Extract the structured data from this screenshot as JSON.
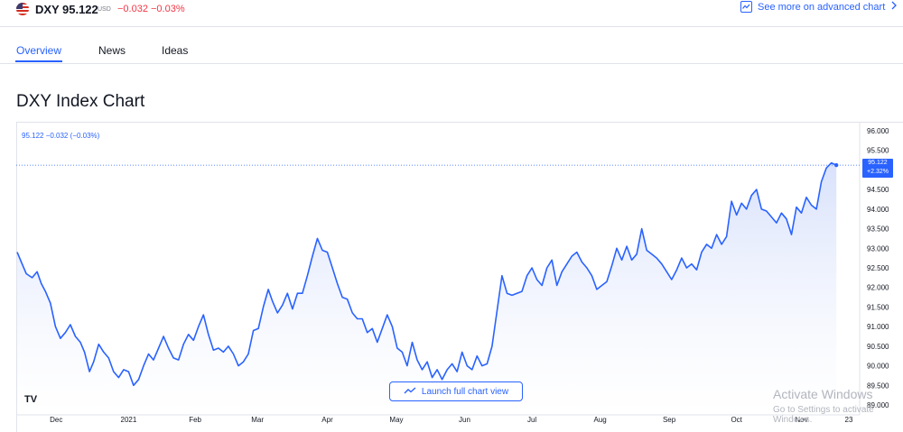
{
  "header": {
    "symbol": "DXY",
    "price": "95.122",
    "currency": "USD",
    "change": "−0.032",
    "change_pct": "−0.03%",
    "advanced_link": "See more on advanced chart"
  },
  "tabs": [
    {
      "label": "Overview",
      "active": true
    },
    {
      "label": "News",
      "active": false
    },
    {
      "label": "Ideas",
      "active": false
    }
  ],
  "title": "DXY Index Chart",
  "legend": "95.122  −0.032 (−0.03%)",
  "launch_button": "Launch full chart view",
  "logo_text": "TV",
  "watermark": {
    "line1": "Activate Windows",
    "line2": "Go to Settings to activate Windows."
  },
  "last_badge": {
    "price": "95.122",
    "change": "+2.32%"
  },
  "colors": {
    "accent": "#2962ff",
    "line": "#2962ff",
    "negative": "#f23645",
    "area_top": "#d6e0fb"
  },
  "chart_data": {
    "type": "area",
    "title": "DXY Index Chart",
    "xlabel": "",
    "ylabel": "",
    "ylim": [
      89.0,
      96.0
    ],
    "grid": false,
    "y_ticks": [
      "96.000",
      "95.500",
      "95.000",
      "94.500",
      "94.000",
      "93.500",
      "93.000",
      "92.500",
      "92.000",
      "91.500",
      "91.000",
      "90.500",
      "90.000",
      "89.500",
      "89.000"
    ],
    "x_ticks": [
      {
        "label": "Dec",
        "t": 0.047
      },
      {
        "label": "2021",
        "t": 0.134
      },
      {
        "label": "Feb",
        "t": 0.214
      },
      {
        "label": "Mar",
        "t": 0.289
      },
      {
        "label": "Apr",
        "t": 0.373
      },
      {
        "label": "May",
        "t": 0.456
      },
      {
        "label": "Jun",
        "t": 0.538
      },
      {
        "label": "Jul",
        "t": 0.619
      },
      {
        "label": "Aug",
        "t": 0.701
      },
      {
        "label": "Sep",
        "t": 0.784
      },
      {
        "label": "Oct",
        "t": 0.865
      },
      {
        "label": "Nov",
        "t": 0.943
      },
      {
        "label": "23",
        "t": 1.0
      }
    ],
    "series": [
      {
        "values": [
          {
            "t": 0.0,
            "y": 92.9
          },
          {
            "t": 0.006,
            "y": 92.6
          },
          {
            "t": 0.011,
            "y": 92.35
          },
          {
            "t": 0.018,
            "y": 92.25
          },
          {
            "t": 0.024,
            "y": 92.4
          },
          {
            "t": 0.029,
            "y": 92.1
          },
          {
            "t": 0.034,
            "y": 91.9
          },
          {
            "t": 0.04,
            "y": 91.6
          },
          {
            "t": 0.046,
            "y": 91.0
          },
          {
            "t": 0.052,
            "y": 90.7
          },
          {
            "t": 0.058,
            "y": 90.85
          },
          {
            "t": 0.064,
            "y": 91.05
          },
          {
            "t": 0.07,
            "y": 90.75
          },
          {
            "t": 0.076,
            "y": 90.6
          },
          {
            "t": 0.081,
            "y": 90.35
          },
          {
            "t": 0.087,
            "y": 89.85
          },
          {
            "t": 0.092,
            "y": 90.1
          },
          {
            "t": 0.098,
            "y": 90.55
          },
          {
            "t": 0.104,
            "y": 90.35
          },
          {
            "t": 0.11,
            "y": 90.2
          },
          {
            "t": 0.116,
            "y": 89.85
          },
          {
            "t": 0.122,
            "y": 89.7
          },
          {
            "t": 0.128,
            "y": 89.9
          },
          {
            "t": 0.134,
            "y": 89.85
          },
          {
            "t": 0.14,
            "y": 89.5
          },
          {
            "t": 0.146,
            "y": 89.65
          },
          {
            "t": 0.152,
            "y": 90.0
          },
          {
            "t": 0.158,
            "y": 90.3
          },
          {
            "t": 0.164,
            "y": 90.15
          },
          {
            "t": 0.17,
            "y": 90.45
          },
          {
            "t": 0.176,
            "y": 90.75
          },
          {
            "t": 0.182,
            "y": 90.45
          },
          {
            "t": 0.188,
            "y": 90.2
          },
          {
            "t": 0.194,
            "y": 90.15
          },
          {
            "t": 0.2,
            "y": 90.55
          },
          {
            "t": 0.206,
            "y": 90.8
          },
          {
            "t": 0.212,
            "y": 90.65
          },
          {
            "t": 0.218,
            "y": 91.0
          },
          {
            "t": 0.224,
            "y": 91.3
          },
          {
            "t": 0.23,
            "y": 90.8
          },
          {
            "t": 0.236,
            "y": 90.4
          },
          {
            "t": 0.242,
            "y": 90.45
          },
          {
            "t": 0.248,
            "y": 90.35
          },
          {
            "t": 0.254,
            "y": 90.5
          },
          {
            "t": 0.26,
            "y": 90.3
          },
          {
            "t": 0.266,
            "y": 90.0
          },
          {
            "t": 0.272,
            "y": 90.1
          },
          {
            "t": 0.278,
            "y": 90.3
          },
          {
            "t": 0.284,
            "y": 90.9
          },
          {
            "t": 0.29,
            "y": 90.95
          },
          {
            "t": 0.296,
            "y": 91.5
          },
          {
            "t": 0.302,
            "y": 91.95
          },
          {
            "t": 0.307,
            "y": 91.65
          },
          {
            "t": 0.313,
            "y": 91.35
          },
          {
            "t": 0.319,
            "y": 91.55
          },
          {
            "t": 0.325,
            "y": 91.85
          },
          {
            "t": 0.331,
            "y": 91.45
          },
          {
            "t": 0.337,
            "y": 91.85
          },
          {
            "t": 0.343,
            "y": 91.85
          },
          {
            "t": 0.349,
            "y": 92.3
          },
          {
            "t": 0.355,
            "y": 92.8
          },
          {
            "t": 0.361,
            "y": 93.25
          },
          {
            "t": 0.367,
            "y": 92.95
          },
          {
            "t": 0.373,
            "y": 92.9
          },
          {
            "t": 0.379,
            "y": 92.5
          },
          {
            "t": 0.385,
            "y": 92.1
          },
          {
            "t": 0.391,
            "y": 91.75
          },
          {
            "t": 0.397,
            "y": 91.7
          },
          {
            "t": 0.403,
            "y": 91.35
          },
          {
            "t": 0.409,
            "y": 91.2
          },
          {
            "t": 0.415,
            "y": 91.2
          },
          {
            "t": 0.421,
            "y": 90.85
          },
          {
            "t": 0.427,
            "y": 90.95
          },
          {
            "t": 0.433,
            "y": 90.6
          },
          {
            "t": 0.439,
            "y": 90.95
          },
          {
            "t": 0.445,
            "y": 91.3
          },
          {
            "t": 0.451,
            "y": 91.0
          },
          {
            "t": 0.457,
            "y": 90.45
          },
          {
            "t": 0.463,
            "y": 90.35
          },
          {
            "t": 0.469,
            "y": 90.0
          },
          {
            "t": 0.475,
            "y": 90.6
          },
          {
            "t": 0.481,
            "y": 90.15
          },
          {
            "t": 0.487,
            "y": 89.9
          },
          {
            "t": 0.493,
            "y": 90.1
          },
          {
            "t": 0.499,
            "y": 89.7
          },
          {
            "t": 0.505,
            "y": 89.9
          },
          {
            "t": 0.511,
            "y": 89.65
          },
          {
            "t": 0.517,
            "y": 89.9
          },
          {
            "t": 0.523,
            "y": 90.05
          },
          {
            "t": 0.529,
            "y": 89.85
          },
          {
            "t": 0.535,
            "y": 90.35
          },
          {
            "t": 0.541,
            "y": 90.0
          },
          {
            "t": 0.547,
            "y": 89.9
          },
          {
            "t": 0.553,
            "y": 90.25
          },
          {
            "t": 0.559,
            "y": 90.0
          },
          {
            "t": 0.565,
            "y": 90.05
          },
          {
            "t": 0.571,
            "y": 90.5
          },
          {
            "t": 0.577,
            "y": 91.4
          },
          {
            "t": 0.583,
            "y": 92.3
          },
          {
            "t": 0.589,
            "y": 91.85
          },
          {
            "t": 0.595,
            "y": 91.8
          },
          {
            "t": 0.601,
            "y": 91.85
          },
          {
            "t": 0.607,
            "y": 91.9
          },
          {
            "t": 0.613,
            "y": 92.3
          },
          {
            "t": 0.619,
            "y": 92.5
          },
          {
            "t": 0.625,
            "y": 92.2
          },
          {
            "t": 0.631,
            "y": 92.05
          },
          {
            "t": 0.637,
            "y": 92.5
          },
          {
            "t": 0.643,
            "y": 92.7
          },
          {
            "t": 0.649,
            "y": 92.05
          },
          {
            "t": 0.655,
            "y": 92.4
          },
          {
            "t": 0.661,
            "y": 92.6
          },
          {
            "t": 0.667,
            "y": 92.8
          },
          {
            "t": 0.673,
            "y": 92.9
          },
          {
            "t": 0.679,
            "y": 92.65
          },
          {
            "t": 0.685,
            "y": 92.5
          },
          {
            "t": 0.691,
            "y": 92.3
          },
          {
            "t": 0.697,
            "y": 91.95
          },
          {
            "t": 0.703,
            "y": 92.05
          },
          {
            "t": 0.709,
            "y": 92.15
          },
          {
            "t": 0.715,
            "y": 92.55
          },
          {
            "t": 0.721,
            "y": 93.0
          },
          {
            "t": 0.727,
            "y": 92.7
          },
          {
            "t": 0.733,
            "y": 93.05
          },
          {
            "t": 0.739,
            "y": 92.7
          },
          {
            "t": 0.745,
            "y": 92.85
          },
          {
            "t": 0.751,
            "y": 93.5
          },
          {
            "t": 0.757,
            "y": 92.95
          },
          {
            "t": 0.763,
            "y": 92.85
          },
          {
            "t": 0.769,
            "y": 92.75
          },
          {
            "t": 0.775,
            "y": 92.6
          },
          {
            "t": 0.781,
            "y": 92.4
          },
          {
            "t": 0.787,
            "y": 92.2
          },
          {
            "t": 0.793,
            "y": 92.45
          },
          {
            "t": 0.799,
            "y": 92.75
          },
          {
            "t": 0.805,
            "y": 92.5
          },
          {
            "t": 0.811,
            "y": 92.6
          },
          {
            "t": 0.817,
            "y": 92.45
          },
          {
            "t": 0.823,
            "y": 92.9
          },
          {
            "t": 0.829,
            "y": 93.1
          },
          {
            "t": 0.835,
            "y": 93.0
          },
          {
            "t": 0.841,
            "y": 93.35
          },
          {
            "t": 0.847,
            "y": 93.1
          },
          {
            "t": 0.853,
            "y": 93.3
          },
          {
            "t": 0.859,
            "y": 94.2
          },
          {
            "t": 0.865,
            "y": 93.85
          },
          {
            "t": 0.871,
            "y": 94.15
          },
          {
            "t": 0.877,
            "y": 94.0
          },
          {
            "t": 0.883,
            "y": 94.35
          },
          {
            "t": 0.889,
            "y": 94.5
          },
          {
            "t": 0.895,
            "y": 94.0
          },
          {
            "t": 0.901,
            "y": 93.95
          },
          {
            "t": 0.907,
            "y": 93.8
          },
          {
            "t": 0.913,
            "y": 93.65
          },
          {
            "t": 0.919,
            "y": 93.9
          },
          {
            "t": 0.925,
            "y": 93.75
          },
          {
            "t": 0.931,
            "y": 93.35
          },
          {
            "t": 0.937,
            "y": 94.05
          },
          {
            "t": 0.943,
            "y": 93.9
          },
          {
            "t": 0.949,
            "y": 94.3
          },
          {
            "t": 0.955,
            "y": 94.1
          },
          {
            "t": 0.961,
            "y": 94.0
          },
          {
            "t": 0.967,
            "y": 94.7
          },
          {
            "t": 0.973,
            "y": 95.05
          },
          {
            "t": 0.979,
            "y": 95.18
          },
          {
            "t": 0.985,
            "y": 95.122
          }
        ]
      }
    ]
  }
}
